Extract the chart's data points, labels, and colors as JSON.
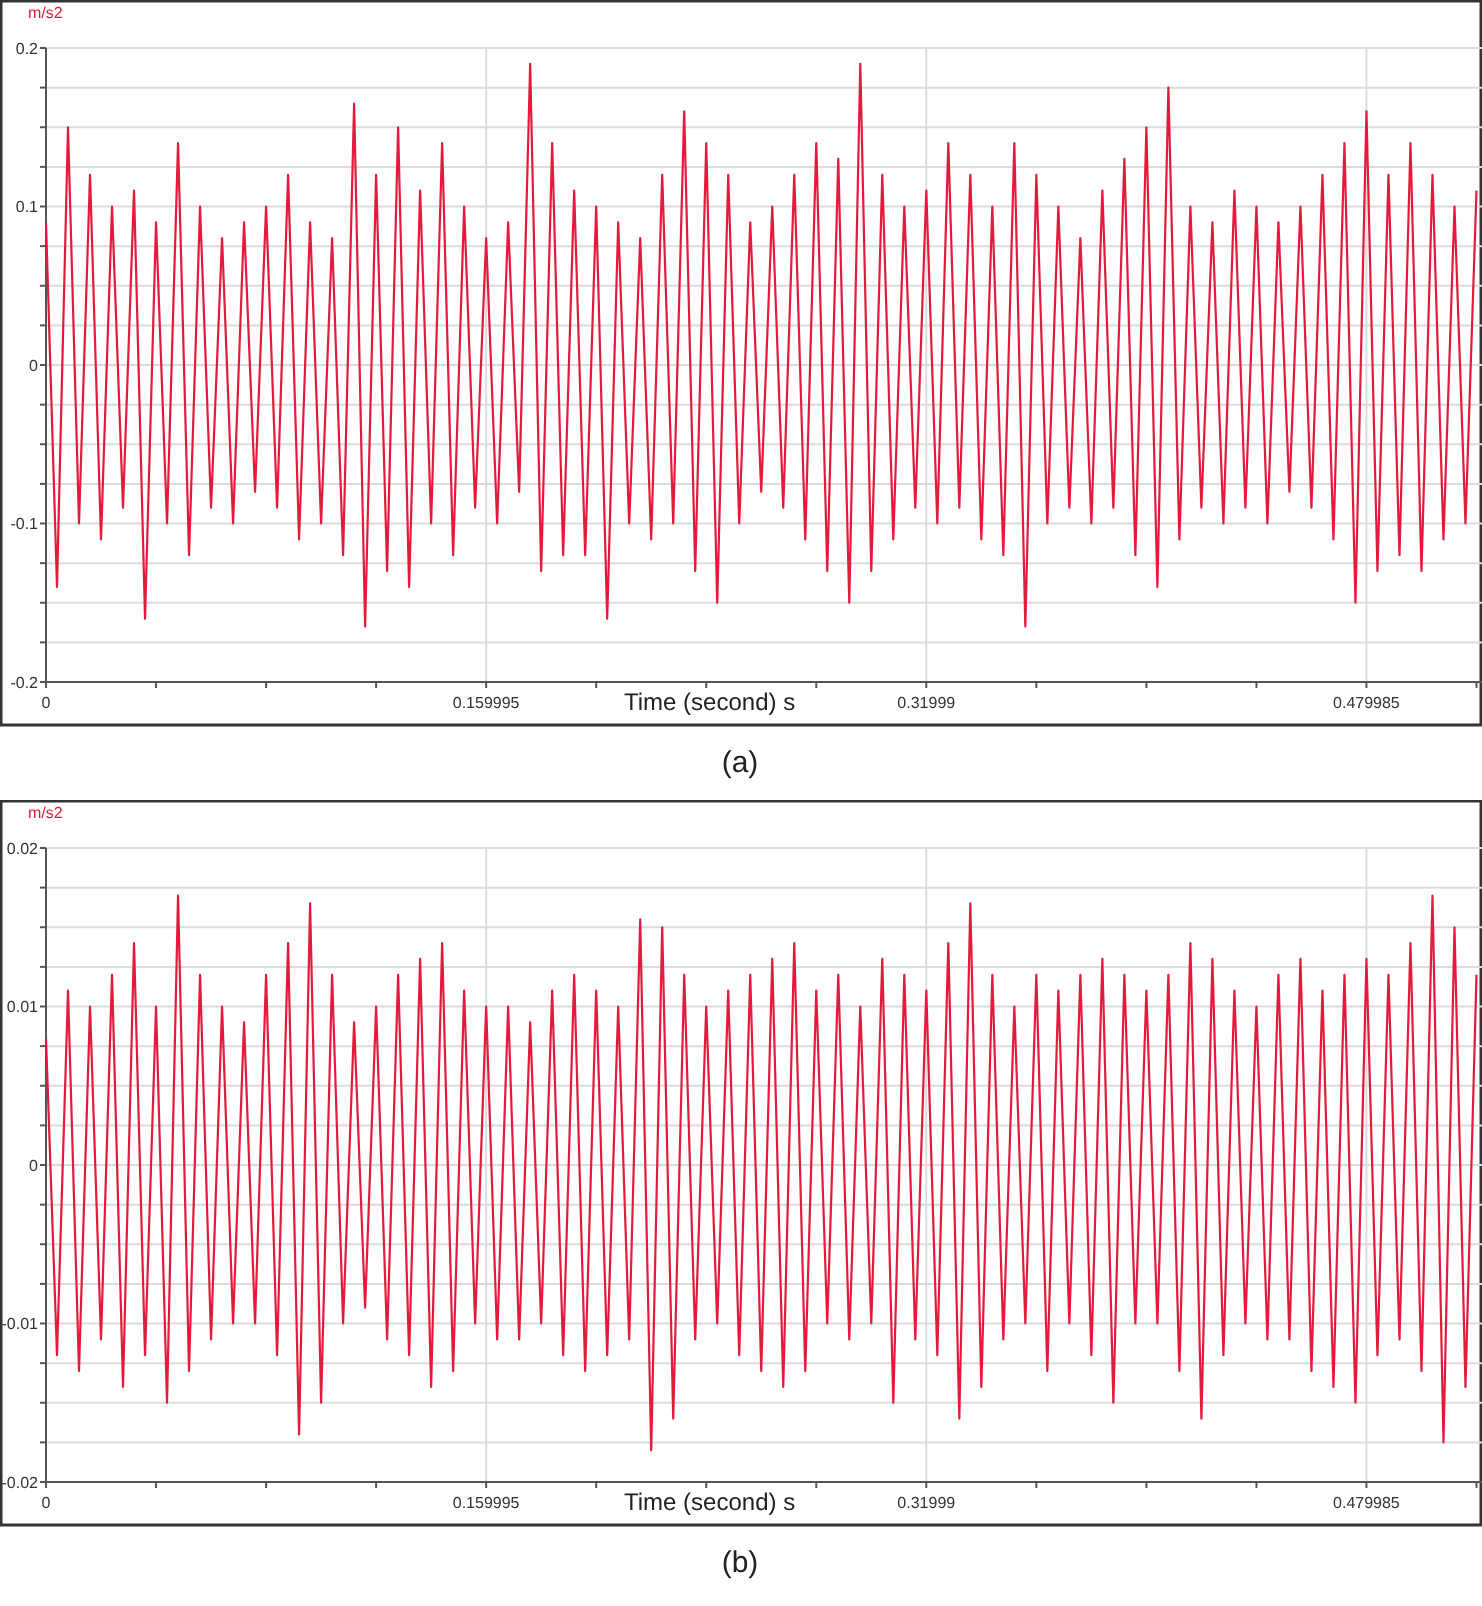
{
  "chart_data": [
    {
      "type": "line",
      "ylabel": "m/s2",
      "xlabel": "Time (second) s",
      "annotations": [
        "(a)"
      ],
      "grid": true,
      "marker": "none",
      "line_style": "solid",
      "xlim": [
        0,
        0.522
      ],
      "xticks": [
        0,
        {
          "value": 0.04,
          "label": null
        },
        {
          "value": 0.08,
          "label": null
        },
        {
          "value": 0.12,
          "label": null
        },
        0.159995,
        {
          "value": 0.2,
          "label": null
        },
        {
          "value": 0.24,
          "label": null
        },
        {
          "value": 0.28,
          "label": null
        },
        0.31999,
        {
          "value": 0.36,
          "label": null
        },
        {
          "value": 0.4,
          "label": null
        },
        {
          "value": 0.44,
          "label": null
        },
        0.479985,
        {
          "value": 0.52,
          "label": null
        }
      ],
      "ylim": [
        -0.2,
        0.2
      ],
      "yticks": [
        -0.2,
        {
          "value": -0.175,
          "label": null
        },
        {
          "value": -0.15,
          "label": null
        },
        {
          "value": -0.125,
          "label": null
        },
        -0.1,
        {
          "value": -0.075,
          "label": null
        },
        {
          "value": -0.05,
          "label": null
        },
        {
          "value": -0.025,
          "label": null
        },
        0,
        {
          "value": 0.025,
          "label": null
        },
        {
          "value": 0.05,
          "label": null
        },
        {
          "value": 0.075,
          "label": null
        },
        0.1,
        {
          "value": 0.125,
          "label": null
        },
        {
          "value": 0.15,
          "label": null
        },
        {
          "value": 0.175,
          "label": null
        },
        0.2
      ],
      "x": [
        0,
        0.004,
        0.008,
        0.012,
        0.016,
        0.02,
        0.024,
        0.028,
        0.032,
        0.036,
        0.04,
        0.044,
        0.048,
        0.052,
        0.056,
        0.06,
        0.064,
        0.068,
        0.072,
        0.076,
        0.08,
        0.084,
        0.088,
        0.092,
        0.096,
        0.1,
        0.104,
        0.108,
        0.112,
        0.116,
        0.12,
        0.124,
        0.128,
        0.132,
        0.136,
        0.14,
        0.144,
        0.148,
        0.152,
        0.156,
        0.16,
        0.164,
        0.168,
        0.172,
        0.176,
        0.18,
        0.184,
        0.188,
        0.192,
        0.196,
        0.2,
        0.204,
        0.208,
        0.212,
        0.216,
        0.22,
        0.224,
        0.228,
        0.232,
        0.236,
        0.24,
        0.244,
        0.248,
        0.252,
        0.256,
        0.26,
        0.264,
        0.268,
        0.272,
        0.276,
        0.28,
        0.284,
        0.288,
        0.292,
        0.296,
        0.3,
        0.304,
        0.308,
        0.312,
        0.316,
        0.32,
        0.324,
        0.328,
        0.332,
        0.336,
        0.34,
        0.344,
        0.348,
        0.352,
        0.356,
        0.36,
        0.364,
        0.368,
        0.372,
        0.376,
        0.38,
        0.384,
        0.388,
        0.392,
        0.396,
        0.4,
        0.404,
        0.408,
        0.412,
        0.416,
        0.42,
        0.424,
        0.428,
        0.432,
        0.436,
        0.44,
        0.444,
        0.448,
        0.452,
        0.456,
        0.46,
        0.464,
        0.468,
        0.472,
        0.476,
        0.48,
        0.484,
        0.488,
        0.492,
        0.496,
        0.5,
        0.504,
        0.508,
        0.512,
        0.516,
        0.52
      ],
      "series": [
        {
          "color": "#e31a3b",
          "values": [
            0.09,
            -0.14,
            0.15,
            -0.1,
            0.12,
            -0.11,
            0.1,
            -0.09,
            0.11,
            -0.16,
            0.09,
            -0.1,
            0.14,
            -0.12,
            0.1,
            -0.09,
            0.08,
            -0.1,
            0.09,
            -0.08,
            0.1,
            -0.09,
            0.12,
            -0.11,
            0.09,
            -0.1,
            0.08,
            -0.12,
            0.165,
            -0.165,
            0.12,
            -0.13,
            0.15,
            -0.14,
            0.11,
            -0.1,
            0.14,
            -0.12,
            0.1,
            -0.09,
            0.08,
            -0.1,
            0.09,
            -0.08,
            0.19,
            -0.13,
            0.14,
            -0.12,
            0.11,
            -0.12,
            0.1,
            -0.16,
            0.09,
            -0.1,
            0.08,
            -0.11,
            0.12,
            -0.1,
            0.16,
            -0.13,
            0.14,
            -0.15,
            0.12,
            -0.1,
            0.09,
            -0.08,
            0.1,
            -0.09,
            0.12,
            -0.11,
            0.14,
            -0.13,
            0.13,
            -0.15,
            0.19,
            -0.13,
            0.12,
            -0.11,
            0.1,
            -0.09,
            0.11,
            -0.1,
            0.14,
            -0.09,
            0.12,
            -0.11,
            0.1,
            -0.12,
            0.14,
            -0.165,
            0.12,
            -0.1,
            0.1,
            -0.09,
            0.08,
            -0.1,
            0.11,
            -0.09,
            0.13,
            -0.12,
            0.15,
            -0.14,
            0.175,
            -0.11,
            0.1,
            -0.09,
            0.09,
            -0.1,
            0.11,
            -0.09,
            0.1,
            -0.1,
            0.09,
            -0.08,
            0.1,
            -0.09,
            0.12,
            -0.11,
            0.14,
            -0.15,
            0.16,
            -0.13,
            0.12,
            -0.12,
            0.14,
            -0.13,
            0.12,
            -0.11,
            0.1,
            -0.1,
            0.11
          ]
        }
      ]
    },
    {
      "type": "line",
      "ylabel": "m/s2",
      "xlabel": "Time (second) s",
      "annotations": [
        "(b)"
      ],
      "grid": true,
      "marker": "none",
      "line_style": "solid",
      "xlim": [
        0,
        0.522
      ],
      "xticks": [
        0,
        {
          "value": 0.04,
          "label": null
        },
        {
          "value": 0.08,
          "label": null
        },
        {
          "value": 0.12,
          "label": null
        },
        0.159995,
        {
          "value": 0.2,
          "label": null
        },
        {
          "value": 0.24,
          "label": null
        },
        {
          "value": 0.28,
          "label": null
        },
        0.31999,
        {
          "value": 0.36,
          "label": null
        },
        {
          "value": 0.4,
          "label": null
        },
        {
          "value": 0.44,
          "label": null
        },
        0.479985,
        {
          "value": 0.52,
          "label": null
        }
      ],
      "ylim": [
        -0.02,
        0.02
      ],
      "yticks": [
        -0.02,
        {
          "value": -0.0175,
          "label": null
        },
        {
          "value": -0.015,
          "label": null
        },
        {
          "value": -0.0125,
          "label": null
        },
        -0.01,
        {
          "value": -0.0075,
          "label": null
        },
        {
          "value": -0.005,
          "label": null
        },
        {
          "value": -0.0025,
          "label": null
        },
        0,
        {
          "value": 0.0025,
          "label": null
        },
        {
          "value": 0.005,
          "label": null
        },
        {
          "value": 0.0075,
          "label": null
        },
        0.01,
        {
          "value": 0.0125,
          "label": null
        },
        {
          "value": 0.015,
          "label": null
        },
        {
          "value": 0.0175,
          "label": null
        },
        0.02
      ],
      "x": [
        0,
        0.004,
        0.008,
        0.012,
        0.016,
        0.02,
        0.024,
        0.028,
        0.032,
        0.036,
        0.04,
        0.044,
        0.048,
        0.052,
        0.056,
        0.06,
        0.064,
        0.068,
        0.072,
        0.076,
        0.08,
        0.084,
        0.088,
        0.092,
        0.096,
        0.1,
        0.104,
        0.108,
        0.112,
        0.116,
        0.12,
        0.124,
        0.128,
        0.132,
        0.136,
        0.14,
        0.144,
        0.148,
        0.152,
        0.156,
        0.16,
        0.164,
        0.168,
        0.172,
        0.176,
        0.18,
        0.184,
        0.188,
        0.192,
        0.196,
        0.2,
        0.204,
        0.208,
        0.212,
        0.216,
        0.22,
        0.224,
        0.228,
        0.232,
        0.236,
        0.24,
        0.244,
        0.248,
        0.252,
        0.256,
        0.26,
        0.264,
        0.268,
        0.272,
        0.276,
        0.28,
        0.284,
        0.288,
        0.292,
        0.296,
        0.3,
        0.304,
        0.308,
        0.312,
        0.316,
        0.32,
        0.324,
        0.328,
        0.332,
        0.336,
        0.34,
        0.344,
        0.348,
        0.352,
        0.356,
        0.36,
        0.364,
        0.368,
        0.372,
        0.376,
        0.38,
        0.384,
        0.388,
        0.392,
        0.396,
        0.4,
        0.404,
        0.408,
        0.412,
        0.416,
        0.42,
        0.424,
        0.428,
        0.432,
        0.436,
        0.44,
        0.444,
        0.448,
        0.452,
        0.456,
        0.46,
        0.464,
        0.468,
        0.472,
        0.476,
        0.48,
        0.484,
        0.488,
        0.492,
        0.496,
        0.5,
        0.504,
        0.508,
        0.512,
        0.516,
        0.52
      ],
      "series": [
        {
          "color": "#e31a3b",
          "values": [
            0.008,
            -0.012,
            0.011,
            -0.013,
            0.01,
            -0.011,
            0.012,
            -0.014,
            0.014,
            -0.012,
            0.01,
            -0.015,
            0.017,
            -0.013,
            0.012,
            -0.011,
            0.01,
            -0.01,
            0.009,
            -0.01,
            0.012,
            -0.012,
            0.014,
            -0.017,
            0.0165,
            -0.015,
            0.012,
            -0.01,
            0.009,
            -0.009,
            0.01,
            -0.011,
            0.012,
            -0.012,
            0.013,
            -0.014,
            0.014,
            -0.013,
            0.011,
            -0.01,
            0.01,
            -0.011,
            0.01,
            -0.011,
            0.009,
            -0.01,
            0.011,
            -0.012,
            0.012,
            -0.013,
            0.011,
            -0.012,
            0.01,
            -0.011,
            0.0155,
            -0.018,
            0.015,
            -0.016,
            0.012,
            -0.011,
            0.01,
            -0.01,
            0.011,
            -0.012,
            0.012,
            -0.013,
            0.013,
            -0.014,
            0.014,
            -0.013,
            0.011,
            -0.01,
            0.012,
            -0.011,
            0.01,
            -0.01,
            0.013,
            -0.015,
            0.012,
            -0.011,
            0.011,
            -0.012,
            0.014,
            -0.016,
            0.0165,
            -0.014,
            0.012,
            -0.011,
            0.01,
            -0.01,
            0.012,
            -0.013,
            0.011,
            -0.01,
            0.012,
            -0.012,
            0.013,
            -0.015,
            0.012,
            -0.01,
            0.011,
            -0.01,
            0.012,
            -0.013,
            0.014,
            -0.016,
            0.013,
            -0.012,
            0.011,
            -0.01,
            0.01,
            -0.011,
            0.012,
            -0.011,
            0.013,
            -0.013,
            0.011,
            -0.014,
            0.012,
            -0.015,
            0.013,
            -0.012,
            0.012,
            -0.011,
            0.014,
            -0.013,
            0.017,
            -0.0175,
            0.015,
            -0.014,
            0.012
          ]
        }
      ]
    }
  ]
}
